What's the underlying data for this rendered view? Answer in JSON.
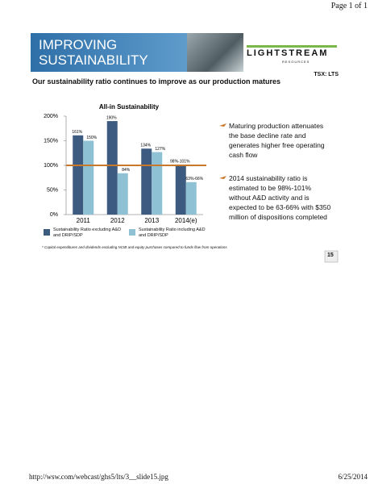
{
  "header": {
    "page": "Page 1 of 1"
  },
  "slide": {
    "title": "IMPROVING SUSTAINABILITY",
    "logo": "LIGHTSTREAM",
    "logo_sub": "RESOURCES",
    "ticker": "TSX: LTS",
    "subtitle": "Our sustainability ratio continues to improve as our production matures",
    "bullets": [
      "Maturing production attenuates the base decline rate and generates higher free operating cash flow",
      "2014 sustainability ratio is estimated to be 98%-101% without A&D activity and is expected to be 63-66% with $350 million of dispositions completed"
    ],
    "footnote": "* Capital expenditures and dividends excluding NCIB and equity purchases compared to funds flow from operations",
    "slide_number": "15"
  },
  "chart_data": {
    "type": "bar",
    "title": "All-in Sustainability",
    "categories": [
      "2011",
      "2012",
      "2013",
      "2014(e)"
    ],
    "series": [
      {
        "name": "Sustainability Ratio excluding A&D and DRIP/SDP",
        "color": "#3d5a80",
        "values": [
          161,
          190,
          134,
          101
        ],
        "value_labels": [
          "161%",
          "190%",
          "134%",
          "98%-101%"
        ]
      },
      {
        "name": "Sustainability Ratio including A&D and DRIP/SDP",
        "color": "#8fc1d4",
        "values": [
          150,
          84,
          127,
          66
        ],
        "value_labels": [
          "150%",
          "84%",
          "127%",
          "63%-66%"
        ]
      }
    ],
    "ylim": [
      0,
      200
    ],
    "yticks": [
      {
        "value": 0,
        "label": "0%"
      },
      {
        "value": 50,
        "label": "50%"
      },
      {
        "value": 100,
        "label": "100%"
      },
      {
        "value": 150,
        "label": "150%"
      },
      {
        "value": 200,
        "label": "200%"
      }
    ],
    "reference_line": {
      "value": 100,
      "color": "#c8782a"
    },
    "legend": "bottom"
  },
  "footer": {
    "url": "http://wsw.com/webcast/ghs5/lts/3__slide15.jpg",
    "date": "6/25/2014"
  }
}
